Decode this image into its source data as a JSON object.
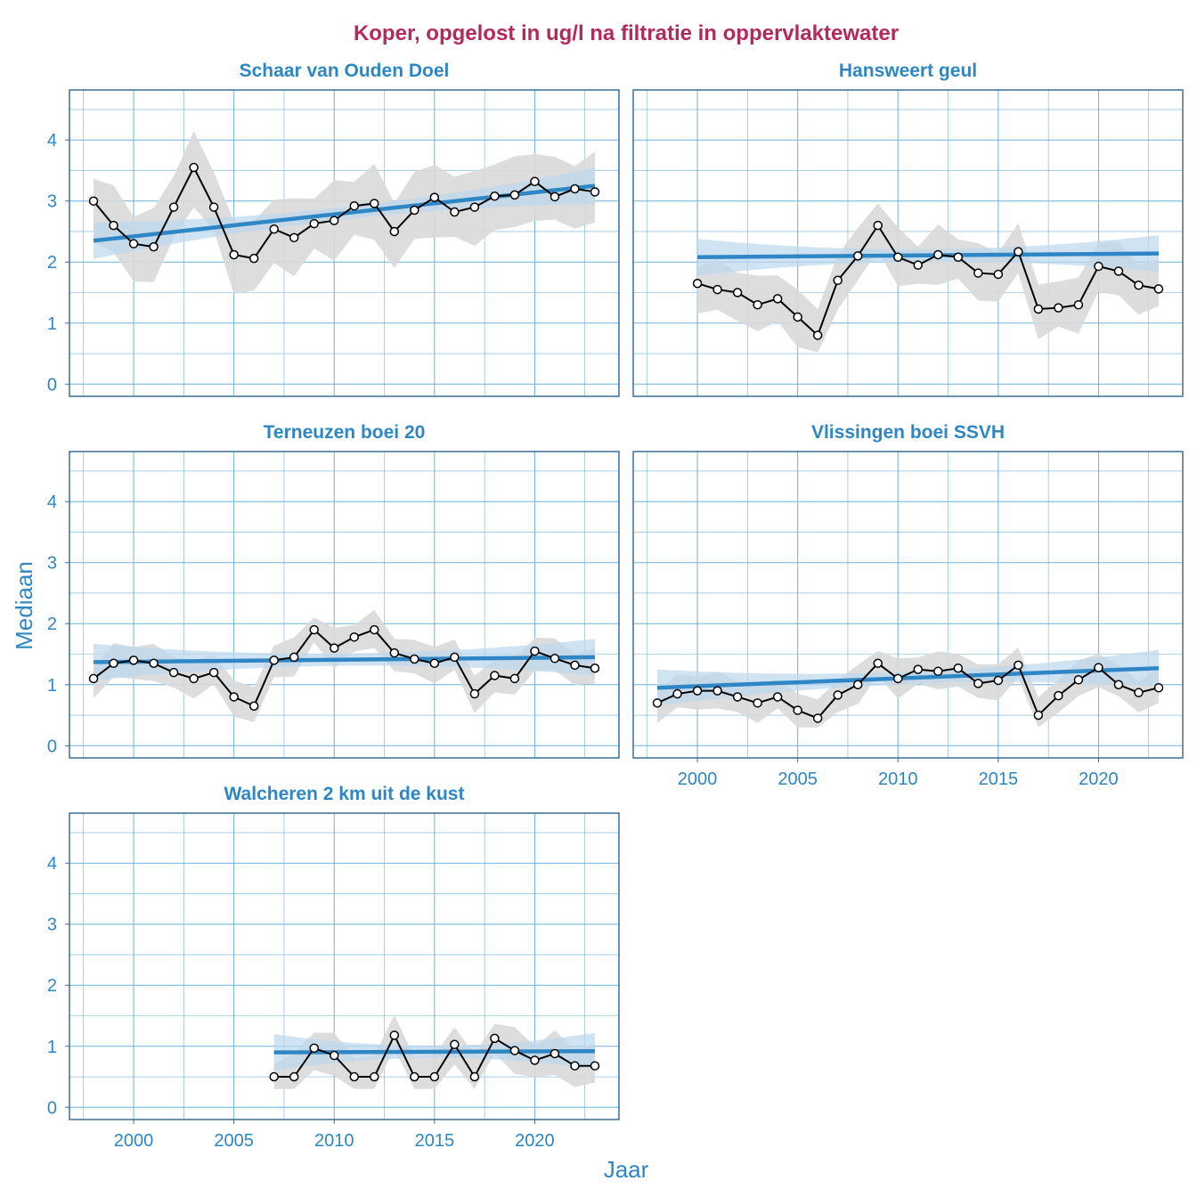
{
  "chart_data": {
    "type": "line",
    "title": "Koper, opgelost in ug/l na filtratie in oppervlaktewater",
    "xlabel": "Jaar",
    "ylabel": "Mediaan",
    "xlim": [
      1996.8,
      2024.2
    ],
    "ylim": [
      -0.2,
      4.82
    ],
    "xticks": [
      2000,
      2005,
      2010,
      2015,
      2020
    ],
    "yticks": [
      0,
      1,
      2,
      3,
      4
    ],
    "colors": {
      "trend": "#2e87c4",
      "band": "#bcd7ec",
      "ribbon": "#d9d9d9",
      "line": "#000000"
    },
    "panels": [
      {
        "name": "Schaar van Ouden Doel",
        "start": 1998,
        "values": [
          3.0,
          2.6,
          2.3,
          2.25,
          2.9,
          3.55,
          2.9,
          2.12,
          2.06,
          2.54,
          2.4,
          2.63,
          2.68,
          2.92,
          2.96,
          2.5,
          2.85,
          3.06,
          2.82,
          2.9,
          3.08,
          3.1,
          3.32,
          3.07,
          3.2,
          3.15
        ],
        "spread": 0.6,
        "trend": [
          2.35,
          3.25
        ]
      },
      {
        "name": "Hansweert geul",
        "start": 2000,
        "values": [
          1.65,
          1.55,
          1.5,
          1.3,
          1.4,
          1.1,
          0.8,
          1.7,
          2.1,
          2.6,
          2.08,
          1.95,
          2.12,
          2.08,
          1.82,
          1.8,
          2.17,
          1.23,
          1.25,
          1.3,
          1.93,
          1.85,
          1.62,
          1.56
        ],
        "spread": 0.45,
        "trend": [
          2.08,
          2.14
        ]
      },
      {
        "name": "Terneuzen boei 20",
        "start": 1998,
        "values": [
          1.1,
          1.35,
          1.4,
          1.35,
          1.2,
          1.1,
          1.2,
          0.8,
          0.65,
          1.4,
          1.45,
          1.9,
          1.6,
          1.78,
          1.9,
          1.52,
          1.42,
          1.35,
          1.45,
          0.85,
          1.15,
          1.1,
          1.55,
          1.43,
          1.32,
          1.27
        ],
        "spread": 0.3,
        "trend": [
          1.37,
          1.45
        ]
      },
      {
        "name": "Vlissingen boei SSVH",
        "start": 1998,
        "values": [
          0.7,
          0.85,
          0.9,
          0.9,
          0.8,
          0.7,
          0.8,
          0.58,
          0.45,
          0.83,
          1.0,
          1.35,
          1.1,
          1.25,
          1.22,
          1.27,
          1.02,
          1.07,
          1.32,
          0.5,
          0.82,
          1.08,
          1.28,
          1.0,
          0.87,
          0.95
        ],
        "spread": 0.3,
        "trend": [
          0.95,
          1.27
        ]
      },
      {
        "name": "Walcheren 2 km uit de kust",
        "start": 2007,
        "values": [
          0.5,
          0.5,
          0.97,
          0.85,
          0.5,
          0.5,
          1.18,
          0.5,
          0.5,
          1.03,
          0.5,
          1.13,
          0.93,
          0.77,
          0.88,
          0.68,
          0.68
        ],
        "spread": 0.35,
        "trend": [
          0.9,
          0.92
        ]
      }
    ]
  }
}
